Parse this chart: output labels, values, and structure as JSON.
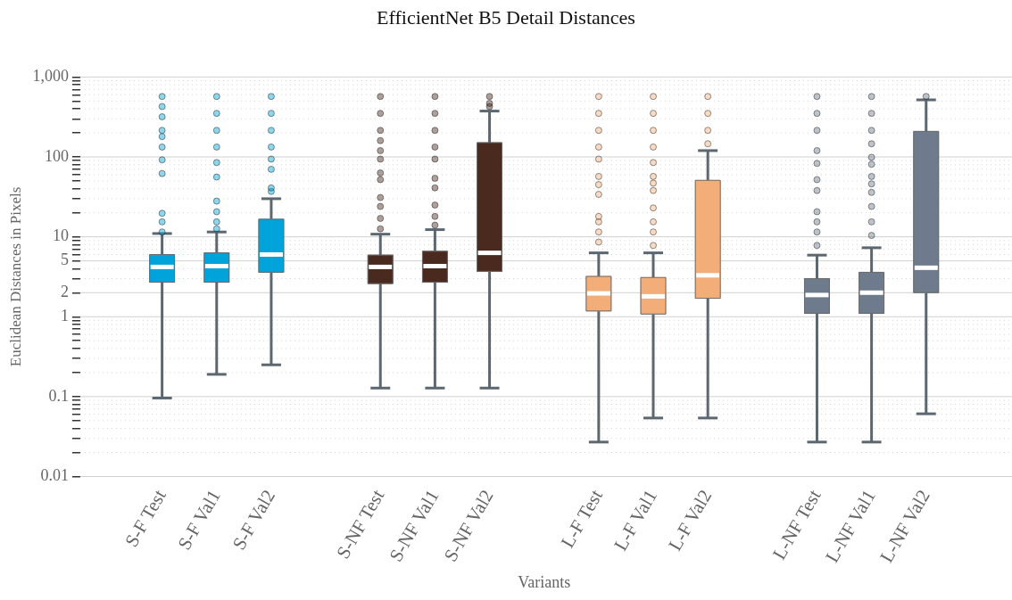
{
  "chart_data": {
    "type": "box",
    "title": "EfficientNet B5 Detail Distances",
    "xlabel": "Variants",
    "ylabel": "Euclidean Distances in Pixels",
    "categories": [
      null,
      "S-F Test",
      "S-F Val1",
      "S-F Val2",
      null,
      "S-NF Test",
      "S-NF Val1",
      "S-NF Val2",
      null,
      "L-F Test",
      "L-F Val1",
      "L-F Val2",
      null,
      "L-NF Test",
      "L-NF Val1",
      "L-NF Val2",
      null
    ],
    "colors": [
      null,
      "#00a3da",
      "#00a3da",
      "#00a3da",
      null,
      "#4a2a1f",
      "#4a2a1f",
      "#4a2a1f",
      null,
      "#f2ad78",
      "#f2ad78",
      "#f2ad78",
      null,
      "#6d7b8c",
      "#6d7b8c",
      "#6d7b8c",
      null
    ],
    "boxes": [
      null,
      {
        "low": 0.096,
        "q1": 2.7,
        "median": 4.2,
        "q3": 6.0,
        "high": 11,
        "outliers": [
          571,
          427,
          318,
          215,
          180,
          133,
          92,
          62,
          19.7,
          15.4,
          11.5
        ]
      },
      {
        "low": 0.19,
        "q1": 2.7,
        "median": 4.3,
        "q3": 6.3,
        "high": 11.5,
        "outliers": [
          571,
          351,
          215,
          133,
          85,
          56,
          28,
          20.6,
          15.4,
          12.6
        ]
      },
      {
        "low": 0.25,
        "q1": 3.6,
        "median": 6.0,
        "q3": 16.6,
        "high": 30,
        "outliers": [
          571,
          351,
          215,
          133,
          94,
          70,
          41,
          37
        ]
      },
      null,
      {
        "low": 0.128,
        "q1": 2.6,
        "median": 4.2,
        "q3": 5.9,
        "high": 10.8,
        "outliers": [
          571,
          351,
          215,
          160,
          120,
          94,
          63,
          52,
          31,
          24,
          17,
          12.6
        ]
      },
      {
        "low": 0.128,
        "q1": 2.7,
        "median": 4.3,
        "q3": 6.6,
        "high": 12.3,
        "outliers": [
          571,
          351,
          215,
          133,
          94,
          54,
          41,
          25,
          18,
          14
        ]
      },
      {
        "low": 0.128,
        "q1": 3.7,
        "median": 6.3,
        "q3": 151,
        "high": 375,
        "outliers": [
          571,
          468,
          427
        ]
      },
      null,
      {
        "low": 0.027,
        "q1": 1.18,
        "median": 1.96,
        "q3": 3.2,
        "high": 6.3,
        "outliers": [
          571,
          351,
          215,
          133,
          94,
          57,
          45,
          34,
          18,
          15.4,
          11.5,
          8.6
        ]
      },
      {
        "low": 0.054,
        "q1": 1.08,
        "median": 1.8,
        "q3": 3.1,
        "high": 6.3,
        "outliers": [
          571,
          351,
          215,
          133,
          85,
          57,
          47,
          38,
          23,
          15.4,
          11.5,
          7.8
        ]
      },
      {
        "low": 0.054,
        "q1": 1.7,
        "median": 3.3,
        "q3": 51,
        "high": 120,
        "outliers": [
          571,
          351,
          215,
          146
        ]
      },
      null,
      {
        "low": 0.027,
        "q1": 1.1,
        "median": 1.87,
        "q3": 3.0,
        "high": 5.9,
        "outliers": [
          571,
          351,
          215,
          120,
          83,
          52,
          38,
          20.6,
          15.4,
          11.5,
          7.8
        ]
      },
      {
        "low": 0.027,
        "q1": 1.1,
        "median": 2.0,
        "q3": 3.6,
        "high": 7.3,
        "outliers": [
          571,
          351,
          215,
          146,
          99,
          81,
          57,
          46,
          36,
          24,
          15.4,
          10.4
        ]
      },
      {
        "low": 0.061,
        "q1": 2.0,
        "median": 4.1,
        "q3": 209,
        "high": 518,
        "outliers": [
          571
        ]
      },
      null
    ],
    "log": "y",
    "grid": "y",
    "ylim": [
      0.01,
      1000
    ],
    "yticks": [
      0.01,
      {
        "value": 0.02,
        "label": null
      },
      {
        "value": 0.03,
        "label": null
      },
      {
        "value": 0.04,
        "label": null
      },
      {
        "value": 0.05,
        "label": null
      },
      {
        "value": 0.06,
        "label": null
      },
      {
        "value": 0.07,
        "label": null
      },
      {
        "value": 0.08,
        "label": null
      },
      {
        "value": 0.09,
        "label": null
      },
      0.1,
      {
        "value": 0.2,
        "label": null
      },
      {
        "value": 0.3,
        "label": null
      },
      {
        "value": 0.4,
        "label": null
      },
      {
        "value": 0.5,
        "label": null
      },
      {
        "value": 0.6,
        "label": null
      },
      {
        "value": 0.7,
        "label": null
      },
      {
        "value": 0.8,
        "label": null
      },
      {
        "value": 0.9,
        "label": null
      },
      1,
      2,
      {
        "value": 3,
        "label": null
      },
      {
        "value": 4,
        "label": null
      },
      5,
      {
        "value": 6,
        "label": null
      },
      {
        "value": 7,
        "label": null
      },
      {
        "value": 8,
        "label": null
      },
      {
        "value": 9,
        "label": null
      },
      10,
      {
        "value": 20,
        "label": null
      },
      {
        "value": 30,
        "label": null
      },
      {
        "value": 40,
        "label": null
      },
      {
        "value": 50,
        "label": null
      },
      {
        "value": 60,
        "label": null
      },
      {
        "value": 70,
        "label": null
      },
      {
        "value": 80,
        "label": null
      },
      {
        "value": 90,
        "label": null
      },
      100,
      {
        "value": 200,
        "label": null
      },
      {
        "value": 300,
        "label": null
      },
      {
        "value": 400,
        "label": null
      },
      {
        "value": 500,
        "label": null
      },
      {
        "value": 600,
        "label": null
      },
      {
        "value": 700,
        "label": null
      },
      {
        "value": 800,
        "label": null
      },
      {
        "value": 900,
        "label": null
      },
      {
        "value": 1000,
        "label": "1,000"
      }
    ]
  }
}
